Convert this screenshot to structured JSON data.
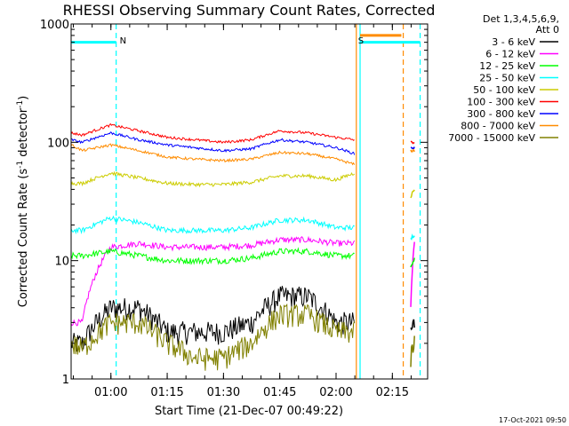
{
  "chart_data": {
    "type": "line",
    "title": "RHESSI Observing Summary Count Rates, Corrected",
    "xlabel": "Start Time (21-Dec-07 00:49:22)",
    "ylabel_main": "Corrected Count Rate (s",
    "ylabel_sup1": "-1",
    "ylabel_mid": " detector",
    "ylabel_sup2": "-1",
    "ylabel_end": ")",
    "x_unit": "minutes after 00:49:22",
    "xlim": [
      0,
      95
    ],
    "ylim": [
      1,
      1000
    ],
    "yscale": "log",
    "x_ticks": [
      {
        "label": "01:00",
        "value": 10.6
      },
      {
        "label": "01:15",
        "value": 25.6
      },
      {
        "label": "01:30",
        "value": 40.6
      },
      {
        "label": "01:45",
        "value": 55.6
      },
      {
        "label": "02:00",
        "value": 70.6
      },
      {
        "label": "02:15",
        "value": 85.6
      }
    ],
    "y_ticks": [
      {
        "label": "1000",
        "value": 1000
      },
      {
        "label": "100",
        "value": 100
      },
      {
        "label": "10",
        "value": 10
      },
      {
        "label": "1",
        "value": 1
      }
    ],
    "legend_header": [
      "Det 1,3,4,5,6,9,",
      "Att 0"
    ],
    "legend_position": "right",
    "series": [
      {
        "name": "3 - 6 keV",
        "color": "#000000",
        "x": [
          0,
          3,
          10.6,
          18,
          25.6,
          33,
          40.6,
          48,
          55.6,
          63,
          70.6,
          75.5
        ],
        "y": [
          2,
          2,
          4,
          4,
          2.5,
          2.5,
          2.5,
          3,
          5,
          5,
          3,
          3
        ],
        "x2": [
          90.5,
          91.5
        ],
        "y2": [
          2.5,
          3
        ]
      },
      {
        "name": "6 - 12 keV",
        "color": "#ff00ff",
        "x": [
          0,
          3,
          10.6,
          18,
          25.6,
          33,
          40.6,
          48,
          55.6,
          63,
          70.6,
          75.5
        ],
        "y": [
          3,
          3,
          13,
          14,
          13,
          13,
          13,
          13.5,
          15,
          15,
          14,
          14
        ],
        "x2": [
          90.5,
          91.5
        ],
        "y2": [
          4,
          14
        ]
      },
      {
        "name": "12 - 25 keV",
        "color": "#00ff00",
        "x": [
          0,
          3,
          10.6,
          18,
          25.6,
          33,
          40.6,
          48,
          55.6,
          63,
          70.6,
          75.5
        ],
        "y": [
          11,
          11,
          12,
          11,
          10,
          10,
          10,
          10.5,
          12,
          12,
          11,
          11
        ],
        "x2": [
          90.5,
          91.5
        ],
        "y2": [
          9,
          10
        ]
      },
      {
        "name": "25 - 50 keV",
        "color": "#00ffff",
        "x": [
          0,
          3,
          10.6,
          18,
          25.6,
          33,
          40.6,
          48,
          55.6,
          63,
          70.6,
          75.5
        ],
        "y": [
          18,
          18,
          23,
          21,
          18,
          18,
          18,
          19,
          22,
          22,
          19,
          19
        ],
        "x2": [
          90.5,
          91.5
        ],
        "y2": [
          15,
          17
        ]
      },
      {
        "name": "50 - 100 keV",
        "color": "#cccc00",
        "x": [
          0,
          3,
          10.6,
          18,
          25.6,
          33,
          40.6,
          48,
          55.6,
          63,
          70.6,
          75.5
        ],
        "y": [
          45,
          45,
          55,
          50,
          45,
          44,
          44,
          46,
          52,
          52,
          48,
          55
        ],
        "x2": [
          90.5,
          91.5
        ],
        "y2": [
          35,
          40
        ]
      },
      {
        "name": "100 - 300 keV",
        "color": "#ff0000",
        "x": [
          0,
          3,
          10.6,
          18,
          25.6,
          33,
          40.6,
          48,
          55.6,
          63,
          70.6,
          75.5
        ],
        "y": [
          120,
          115,
          140,
          125,
          110,
          105,
          100,
          105,
          125,
          120,
          110,
          105
        ],
        "x2": [
          90.5,
          91.5
        ],
        "y2": [
          100,
          100
        ]
      },
      {
        "name": "300 - 800 keV",
        "color": "#0000ff",
        "x": [
          0,
          3,
          10.6,
          18,
          25.6,
          33,
          40.6,
          48,
          55.6,
          63,
          70.6,
          75.5
        ],
        "y": [
          105,
          100,
          120,
          105,
          95,
          90,
          85,
          88,
          105,
          100,
          90,
          80
        ],
        "x2": [
          90.5,
          91.5
        ],
        "y2": [
          90,
          90
        ]
      },
      {
        "name": "800 - 7000 keV",
        "color": "#ff8c00",
        "x": [
          0,
          3,
          10.6,
          18,
          25.6,
          33,
          40.6,
          48,
          55.6,
          63,
          70.6,
          75.5
        ],
        "y": [
          95,
          85,
          95,
          85,
          75,
          72,
          70,
          72,
          82,
          80,
          72,
          65
        ],
        "x2": [
          90.5,
          91.5
        ],
        "y2": [
          85,
          85
        ]
      },
      {
        "name": "7000 - 15000 keV",
        "color": "#808000",
        "x": [
          0,
          3,
          10.6,
          18,
          25.6,
          33,
          40.6,
          48,
          55.6,
          63,
          70.6,
          75.5
        ],
        "y": [
          2,
          1.8,
          3,
          3,
          2,
          1.5,
          1.5,
          2,
          3.5,
          3.5,
          2.5,
          2.5
        ],
        "x2": [
          90.5,
          91.5
        ],
        "y2": [
          1.5,
          2
        ]
      }
    ],
    "annotations": [
      {
        "text": "N",
        "x": 12,
        "color": "#00ffff"
      },
      {
        "text": "S",
        "x": 75.5,
        "color": "#ff8c00"
      }
    ],
    "night_bars": [
      {
        "x1": 0,
        "x2": 12,
        "y": 700,
        "color": "#00ffff"
      },
      {
        "x1": 77,
        "x2": 93,
        "y": 700,
        "color": "#00ffff"
      },
      {
        "x1": 77,
        "x2": 88,
        "y": 800,
        "color": "#ff8c00"
      }
    ],
    "vlines": [
      {
        "x": 12,
        "color": "#00ffff",
        "dashed": true
      },
      {
        "x": 76,
        "color": "#ff8c00",
        "dashed": false
      },
      {
        "x": 77,
        "color": "#00ffff",
        "dashed": false
      },
      {
        "x": 88.5,
        "color": "#ff8c00",
        "dashed": true
      },
      {
        "x": 93,
        "color": "#00ffff",
        "dashed": true
      }
    ],
    "grid": false,
    "footer": "17-Oct-2021 09:50"
  }
}
